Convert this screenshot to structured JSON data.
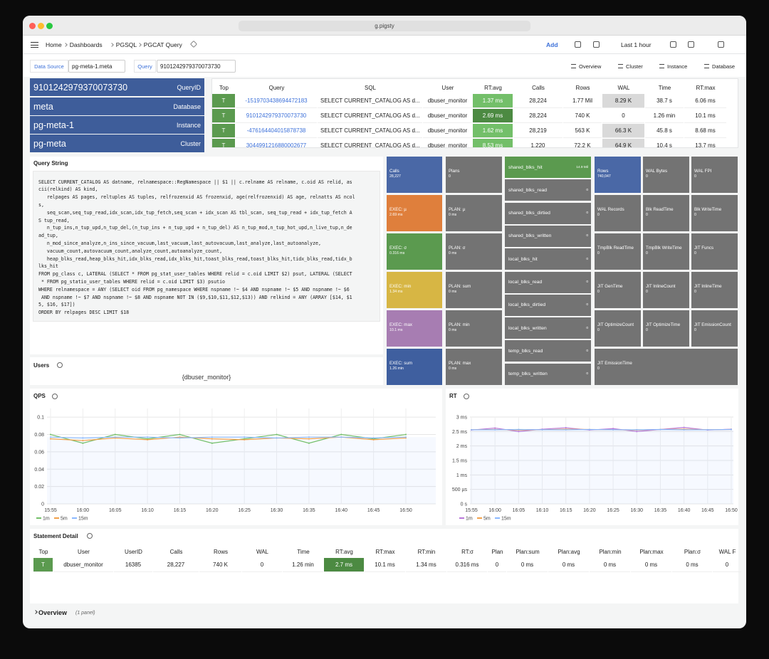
{
  "browser": {
    "url": "g.pigsty"
  },
  "breadcrumb": [
    "Home",
    "Dashboards",
    "PGSQL",
    "PGCAT Query"
  ],
  "toolbar": {
    "add": "Add",
    "time_range": "Last 1 hour"
  },
  "variables": [
    {
      "label": "Data Source",
      "value": "pg-meta-1.meta"
    },
    {
      "label": "Query",
      "value": "9101242979370073730"
    }
  ],
  "links": [
    "Overview",
    "Cluster",
    "Instance",
    "Database"
  ],
  "stats": [
    {
      "value": "9101242979370073730",
      "label": "QueryID"
    },
    {
      "value": "meta",
      "label": "Database"
    },
    {
      "value": "pg-meta-1",
      "label": "Instance"
    },
    {
      "value": "pg-meta",
      "label": "Cluster"
    }
  ],
  "top_table": {
    "columns": [
      "Top",
      "Query",
      "SQL",
      "User",
      "RT:avg",
      "Calls",
      "Rows",
      "WAL",
      "Time",
      "RT:max"
    ],
    "rows": [
      [
        "T",
        "-1519703438694472183",
        "SELECT CURRENT_CATALOG AS d...",
        "dbuser_monitor",
        "1.37 ms",
        "28,224",
        "1.77 Mil",
        "8.29 K",
        "38.7 s",
        "6.06 ms"
      ],
      [
        "T",
        "9101242979370073730",
        "SELECT CURRENT_CATALOG AS d...",
        "dbuser_monitor",
        "2.69 ms",
        "28,224",
        "740 K",
        "0",
        "1.26 min",
        "10.1 ms"
      ],
      [
        "T",
        "-476164404015878738",
        "SELECT CURRENT_CATALOG AS d...",
        "dbuser_monitor",
        "1.62 ms",
        "28,219",
        "563 K",
        "66.3 K",
        "45.8 s",
        "8.68 ms"
      ],
      [
        "T",
        "3044991216880002677",
        "SELECT CURRENT_CATALOG AS d...",
        "dbuser_monitor",
        "8.53 ms",
        "1,220",
        "72.2 K",
        "64.9 K",
        "10.4 s",
        "13.7 ms"
      ]
    ]
  },
  "query_string": {
    "title": "Query String",
    "lines": [
      "SELECT CURRENT_CATALOG AS datname, relnamespace::RegNamespace || $1 || c.relname AS relname, c.oid AS relid, as",
      "cii(relkind) AS kind,",
      "   relpages AS pages, reltuples AS tuples, relfrozenxid AS frozenxid, age(relfrozenxid) AS age, relnatts AS ncol",
      "s,",
      "   seq_scan,seq_tup_read,idx_scan,idx_tup_fetch,seq_scan + idx_scan AS tbl_scan, seq_tup_read + idx_tup_fetch A",
      "S tup_read,",
      "   n_tup_ins,n_tup_upd,n_tup_del,(n_tup_ins + n_tup_upd + n_tup_del) AS n_tup_mod,n_tup_hot_upd,n_live_tup,n_de",
      "ad_tup,",
      "   n_mod_since_analyze,n_ins_since_vacuum,last_vacuum,last_autovacuum,last_analyze,last_autoanalyze,",
      "   vacuum_count,autovacuum_count,analyze_count,autoanalyze_count,",
      "   heap_blks_read,heap_blks_hit,idx_blks_read,idx_blks_hit,toast_blks_read,toast_blks_hit,tidx_blks_read,tidx_b",
      "lks_hit",
      "FROM pg_class c, LATERAL (SELECT * FROM pg_stat_user_tables WHERE relid = c.oid LIMIT $2) psut, LATERAL (SELECT",
      " * FROM pg_statio_user_tables WHERE relid = c.oid LIMIT $3) psutio",
      "WHERE relnamespace = ANY (SELECT oid FROM pg_namespace WHERE nspname !~ $4 AND nspname !~ $5 AND nspname !~ $6",
      " AND nspname !~ $7 AND nspname !~ $8 AND nspname NOT IN ($9,$10,$11,$12,$13)) AND relkind = ANY (ARRAY [$14, $1",
      "5, $16, $17])",
      "ORDER BY relpages DESC LIMIT $18"
    ]
  },
  "users": {
    "title": "Users",
    "value": "{dbuser_monitor}"
  },
  "tiles": {
    "exec": [
      {
        "label": "Calls",
        "value": "28,227",
        "color": "#4a68a6"
      },
      {
        "label": "EXEC: µ",
        "value": "2.69 ms",
        "color": "#df7f3c"
      },
      {
        "label": "EXEC: σ",
        "value": "0.316 ms",
        "color": "#5b9a4f"
      },
      {
        "label": "EXEC: min",
        "value": "1.34 ms",
        "color": "#d7b644"
      },
      {
        "label": "EXEC: max",
        "value": "10.1 ms",
        "color": "#a77db2"
      },
      {
        "label": "EXEC: sum",
        "value": "1.26 min",
        "color": "#3f5f9f"
      }
    ],
    "plan": [
      {
        "label": "Plans",
        "value": "0"
      },
      {
        "label": "PLAN: µ",
        "value": "0 ms"
      },
      {
        "label": "PLAN: σ",
        "value": "0 ms"
      },
      {
        "label": "PLAN: sum",
        "value": "0 ms"
      },
      {
        "label": "PLAN: min",
        "value": "0 ms"
      },
      {
        "label": "PLAN: max",
        "value": "0 ms"
      }
    ],
    "blocks": [
      {
        "label": "shared_blks_hit",
        "value": "14.9 Mil",
        "color": "#5b9a4f"
      },
      {
        "label": "shared_blks_read",
        "value": "0"
      },
      {
        "label": "shared_blks_dirtied",
        "value": "0"
      },
      {
        "label": "shared_blks_written",
        "value": "0"
      },
      {
        "label": "local_blks_hit",
        "value": "0"
      },
      {
        "label": "local_blks_read",
        "value": "0"
      },
      {
        "label": "local_blks_dirtied",
        "value": "0"
      },
      {
        "label": "local_blks_written",
        "value": "0"
      },
      {
        "label": "temp_blks_read",
        "value": "0"
      },
      {
        "label": "temp_blks_written",
        "value": "0"
      }
    ],
    "misc": [
      {
        "label": "Rows",
        "value": "740,047",
        "color": "#4a68a6"
      },
      {
        "label": "WAL Bytes",
        "value": "0"
      },
      {
        "label": "WAL FPI",
        "value": "0"
      },
      {
        "label": "WAL Records",
        "value": "0"
      },
      {
        "label": "Blk ReadTime",
        "value": "0"
      },
      {
        "label": "Blk WriteTime",
        "value": "0"
      },
      {
        "label": "TmpBlk ReadTime",
        "value": "0"
      },
      {
        "label": "TmpBlk WriteTime",
        "value": "0"
      },
      {
        "label": "JIT Funcs",
        "value": "0"
      },
      {
        "label": "JIT GenTime",
        "value": "0"
      },
      {
        "label": "JIT InlineCount",
        "value": "0"
      },
      {
        "label": "JIT InlineTime",
        "value": "0"
      },
      {
        "label": "JIT OptimizeCount",
        "value": "0"
      },
      {
        "label": "JIT OptimizeTime",
        "value": "0"
      },
      {
        "label": "JIT EmissionCount",
        "value": "0"
      },
      {
        "label": "JIT EmissionTime",
        "value": "0"
      }
    ]
  },
  "qps": {
    "title": "QPS",
    "chart": {
      "type": "line",
      "x": [
        "15:55",
        "16:00",
        "16:05",
        "16:10",
        "16:15",
        "16:20",
        "16:25",
        "16:30",
        "16:35",
        "16:40",
        "16:45",
        "16:50"
      ],
      "ylim": [
        0,
        0.11
      ],
      "yticks": [
        0,
        0.02,
        0.04,
        0.06,
        0.08,
        0.1
      ],
      "grid": true,
      "series": [
        {
          "name": "1m",
          "color": "#73bf69",
          "values": [
            0.08,
            0.07,
            0.08,
            0.075,
            0.08,
            0.07,
            0.075,
            0.08,
            0.07,
            0.08,
            0.075,
            0.08
          ]
        },
        {
          "name": "5m",
          "color": "#f2a14a",
          "values": [
            0.075,
            0.073,
            0.076,
            0.074,
            0.077,
            0.075,
            0.074,
            0.076,
            0.075,
            0.077,
            0.074,
            0.076
          ]
        },
        {
          "name": "15m",
          "color": "#8ab8ff",
          "values": [
            0.077,
            0.076,
            0.077,
            0.077,
            0.076,
            0.077,
            0.077,
            0.076,
            0.077,
            0.077,
            0.076,
            0.077
          ]
        }
      ]
    }
  },
  "rt": {
    "title": "RT",
    "chart": {
      "type": "line",
      "x": [
        "15:55",
        "16:00",
        "16:05",
        "16:10",
        "16:15",
        "16:20",
        "16:25",
        "16:30",
        "16:35",
        "16:40",
        "16:45",
        "16:50"
      ],
      "ylim": [
        0,
        3
      ],
      "yticks": [
        {
          "value": 0,
          "label": "0 s"
        },
        {
          "value": 0.5,
          "label": "500 µs"
        },
        {
          "value": 1,
          "label": "1 ms"
        },
        {
          "value": 1.5,
          "label": "1.5 ms"
        },
        {
          "value": 2,
          "label": "2 ms"
        },
        {
          "value": 2.5,
          "label": "2.5 ms"
        },
        {
          "value": 3,
          "label": "3 ms"
        }
      ],
      "grid": true,
      "series": [
        {
          "name": "1m",
          "color": "#b877d9",
          "values": [
            2.55,
            2.62,
            2.5,
            2.58,
            2.63,
            2.55,
            2.6,
            2.5,
            2.57,
            2.64,
            2.55,
            2.58
          ]
        },
        {
          "name": "5m",
          "color": "#f2a14a",
          "values": [
            2.56,
            2.57,
            2.55,
            2.56,
            2.58,
            2.57,
            2.56,
            2.55,
            2.57,
            2.58,
            2.56,
            2.57
          ]
        },
        {
          "name": "15m",
          "color": "#8ab8ff",
          "values": [
            2.56,
            2.56,
            2.57,
            2.56,
            2.56,
            2.57,
            2.56,
            2.56,
            2.57,
            2.56,
            2.56,
            2.57
          ]
        }
      ]
    }
  },
  "statement_detail": {
    "title": "Statement Detail",
    "columns": [
      "Top",
      "User",
      "UserID",
      "Calls",
      "Rows",
      "WAL",
      "Time",
      "RT:avg",
      "RT:max",
      "RT:min",
      "RT:σ",
      "Plan",
      "Plan:sum",
      "Plan:avg",
      "Plan:min",
      "Plan:max",
      "Plan:σ",
      "WAL F"
    ],
    "rows": [
      [
        "T",
        "dbuser_monitor",
        "16385",
        "28,227",
        "740 K",
        "0",
        "1.26 min",
        "2.7 ms",
        "10.1 ms",
        "1.34 ms",
        "0.316 ms",
        "0",
        "0 ms",
        "0 ms",
        "0 ms",
        "0 ms",
        "0 ms",
        "0"
      ]
    ]
  },
  "overview_row": {
    "title": "Overview",
    "note": "(1 panel)"
  }
}
